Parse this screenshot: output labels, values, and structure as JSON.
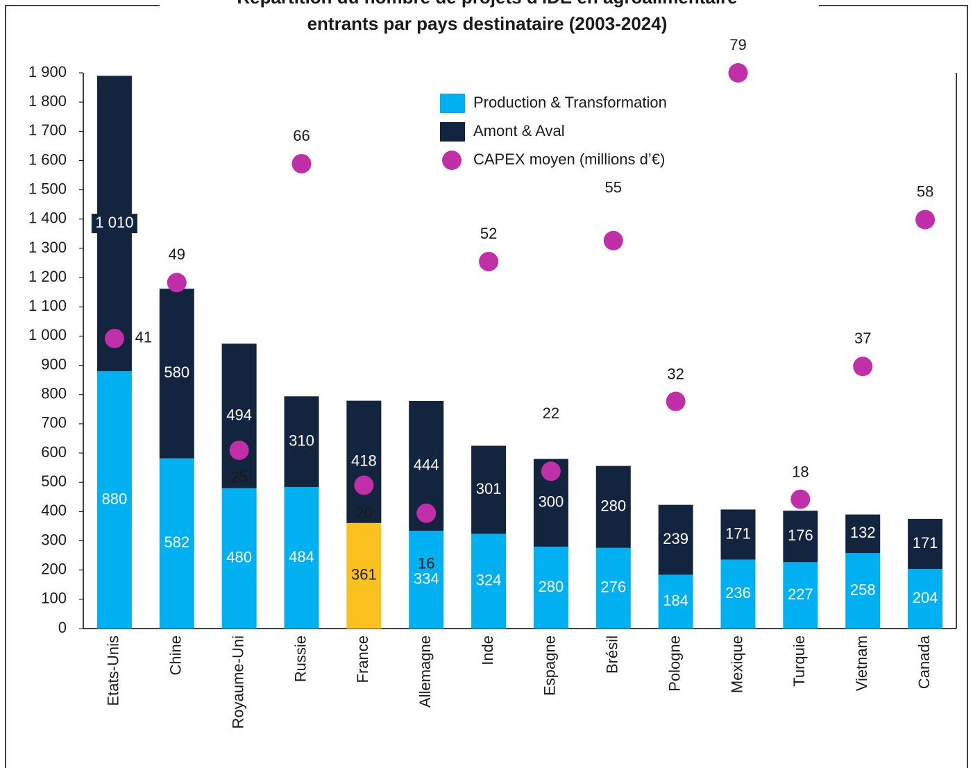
{
  "chart_data": {
    "type": "bar",
    "title": [
      "Répartition du nombre de projets d'IDE en agroalimentaire",
      "entrants par pays destinataire (2003-2024)"
    ],
    "categories": [
      "Etats-Unis",
      "Chine",
      "Royaume-Uni",
      "Russie",
      "France",
      "Allemagne",
      "Inde",
      "Espagne",
      "Brésil",
      "Pologne",
      "Mexique",
      "Turquie",
      "Vietnam",
      "Canada"
    ],
    "stacked": true,
    "series": [
      {
        "name": "Production & Transformation",
        "color": "#00b0f0",
        "colors": [
          "#00b0f0",
          "#00b0f0",
          "#00b0f0",
          "#00b0f0",
          "#f9c21f",
          "#00b0f0",
          "#00b0f0",
          "#00b0f0",
          "#00b0f0",
          "#00b0f0",
          "#00b0f0",
          "#00b0f0",
          "#00b0f0",
          "#00b0f0"
        ],
        "values": [
          880,
          582,
          480,
          484,
          361,
          334,
          324,
          280,
          276,
          184,
          236,
          227,
          258,
          204
        ],
        "value_labels": [
          "880",
          "582",
          "480",
          "484",
          "361",
          "334",
          "324",
          "280",
          "276",
          "184",
          "236",
          "227",
          "258",
          "204"
        ]
      },
      {
        "name": "Amont & Aval",
        "color": "#13243f",
        "values": [
          1010,
          580,
          494,
          310,
          418,
          444,
          301,
          300,
          280,
          239,
          171,
          176,
          132,
          171
        ],
        "value_labels": [
          "1 010",
          "580",
          "494",
          "310",
          "418",
          "444",
          "301",
          "300",
          "280",
          "239",
          "171",
          "176",
          "132",
          "171"
        ]
      },
      {
        "name": "CAPEX moyen (millions d’€)",
        "color": "#c02fa8",
        "type": "scatter",
        "axis": "y2",
        "values": [
          41,
          49,
          25,
          66,
          20,
          16,
          52,
          22,
          55,
          32,
          79,
          18,
          37,
          58
        ]
      }
    ],
    "ylim": [
      0,
      1900
    ],
    "yticks": [
      0,
      100,
      200,
      300,
      400,
      500,
      600,
      700,
      800,
      900,
      {
        "value": 1000,
        "label": "1 000"
      },
      {
        "value": 1100,
        "label": "1 100"
      },
      {
        "value": 1200,
        "label": "1 200"
      },
      {
        "value": 1300,
        "label": "1 300"
      },
      {
        "value": 1400,
        "label": "1 400"
      },
      {
        "value": 1500,
        "label": "1 500"
      },
      {
        "value": 1600,
        "label": "1 600"
      },
      {
        "value": 1700,
        "label": "1 700"
      },
      {
        "value": 1800,
        "label": "1 800"
      },
      {
        "value": 1900,
        "label": "1 900"
      }
    ],
    "y2lim": [
      -0.5,
      79
    ],
    "grid": false,
    "legend": "top-right"
  }
}
